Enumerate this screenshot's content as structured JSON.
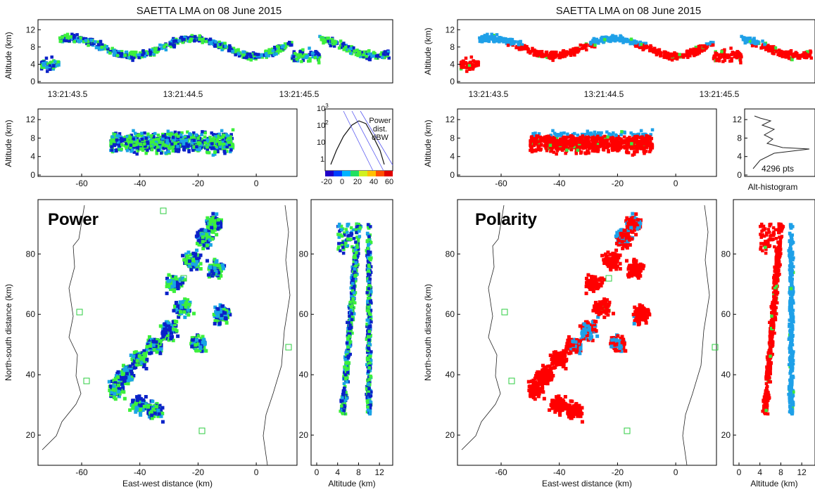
{
  "colors": {
    "low": "#0a22c8",
    "mid": "#1aa4e6",
    "high": "#3cf03c",
    "positive": "#ff0000",
    "negative": "#1ea0e8",
    "other": "#3ce83c"
  },
  "left": {
    "title": "SAETTA LMA on 08 June 2015",
    "panel_label": "Power",
    "hist_labels": [
      "Power",
      "dist.",
      "dBW"
    ],
    "colorbar_ticks": [
      "-20",
      "0",
      "20",
      "40",
      "60"
    ]
  },
  "right": {
    "title": "SAETTA LMA on 08 June 2015",
    "panel_label": "Polarity",
    "hist_count": "4296 pts",
    "hist_title": "Alt-histogram"
  },
  "axes": {
    "altitude": "Altitude (km)",
    "north_south": "North-south distance (km)",
    "east_west": "East-west distance (km)",
    "time_ticks": [
      "13:21:43.5",
      "13:21:44.5",
      "13:21:45.5"
    ],
    "alt_ticks": [
      "0",
      "2",
      "4",
      "6",
      "8",
      "10",
      "12"
    ],
    "alt_ticks_short": [
      "0",
      "4",
      "8",
      "12"
    ],
    "ew_ticks": [
      "-60",
      "-40",
      "-20",
      "0"
    ],
    "ns_ticks": [
      "20",
      "40",
      "60",
      "80"
    ],
    "pow_ticks": [
      "1",
      "10",
      "10",
      "10"
    ]
  },
  "chart_data": [
    {
      "type": "scatter",
      "title": "SAETTA LMA on 08 June 2015",
      "panel": "Power",
      "xlabel": "East-west distance (km)",
      "ylabel": "North-south distance (km)",
      "xlim": [
        -75,
        14
      ],
      "ylim": [
        10,
        98
      ],
      "color_scale": {
        "label": "Power dist. dBW",
        "range": [
          -20,
          60
        ]
      },
      "series": [
        {
          "values": [
            [
              -48,
              35
            ],
            [
              -45,
              40
            ],
            [
              -40,
              45
            ],
            [
              -35,
              50
            ],
            [
              -30,
              55
            ],
            [
              -25,
              62
            ],
            [
              -28,
              70
            ],
            [
              -22,
              78
            ],
            [
              -18,
              85
            ],
            [
              -15,
              90
            ],
            [
              -40,
              30
            ],
            [
              -35,
              28
            ],
            [
              -20,
              50
            ],
            [
              -12,
              60
            ],
            [
              -14,
              75
            ]
          ]
        }
      ]
    },
    {
      "type": "scatter",
      "title": "SAETTA LMA on 08 June 2015",
      "panel": "Polarity",
      "xlabel": "East-west distance (km)",
      "ylabel": "North-south distance (km)",
      "xlim": [
        -75,
        14
      ],
      "ylim": [
        10,
        98
      ],
      "series": [
        {
          "values": [
            [
              -48,
              35
            ],
            [
              -42,
              42
            ],
            [
              -35,
              50
            ],
            [
              -28,
              60
            ],
            [
              -22,
              70
            ],
            [
              -18,
              80
            ],
            [
              -16,
              88
            ],
            [
              -38,
              30
            ]
          ]
        },
        {
          "values": [
            [
              -35,
              38
            ],
            [
              -30,
              45
            ],
            [
              -25,
              50
            ],
            [
              -20,
              55
            ],
            [
              -18,
              62
            ],
            [
              -16,
              88
            ]
          ]
        },
        {
          "values": [
            [
              -24,
              66
            ],
            [
              -18,
              68
            ]
          ]
        }
      ]
    }
  ]
}
